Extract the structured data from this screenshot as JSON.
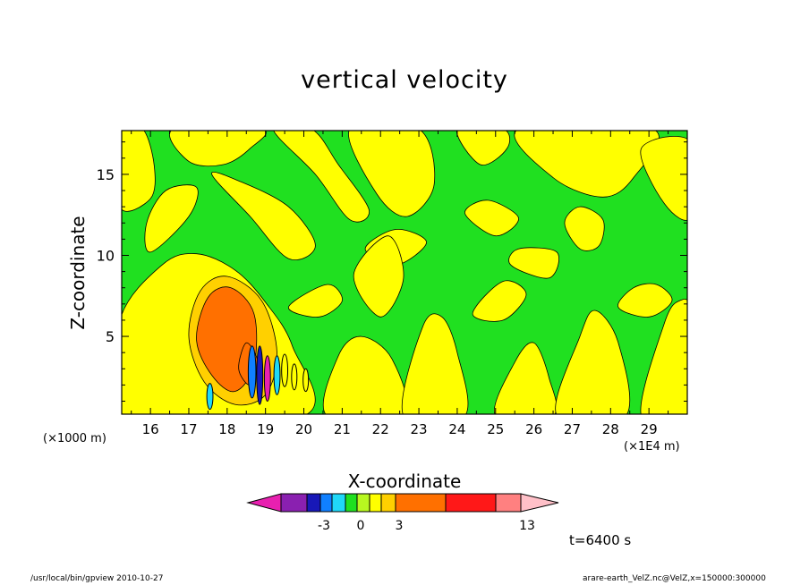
{
  "chart_data": {
    "type": "contour",
    "title": "vertical velocity",
    "xlabel": "X-coordinate",
    "ylabel": "Z-coordinate",
    "x_unit_left": "(×1000 m)",
    "x_unit_right": "(×1E4 m)",
    "xticks": [
      16,
      17,
      18,
      19,
      20,
      21,
      22,
      23,
      24,
      25,
      26,
      27,
      28,
      29
    ],
    "yticks": [
      5,
      10,
      15
    ],
    "xlim": [
      15.25,
      30.0
    ],
    "ylim": [
      0.2,
      17.7
    ],
    "colorbar": {
      "levels_labeled": [
        "-3",
        "0",
        "3",
        "13"
      ],
      "colors": [
        "#e820b0",
        "#8a20b0",
        "#1818b8",
        "#1080ff",
        "#20d8f8",
        "#20e020",
        "#b8f820",
        "#ffff00",
        "#ffd000",
        "#ff7000",
        "#ff1818",
        "#ff8080",
        "#ffc0c8"
      ]
    },
    "time_label": "t=6400 s"
  },
  "footer": {
    "left": "/usr/local/bin/gpview  2010-10-27",
    "right": "arare-earth_VelZ.nc@VelZ,x=150000:300000"
  }
}
